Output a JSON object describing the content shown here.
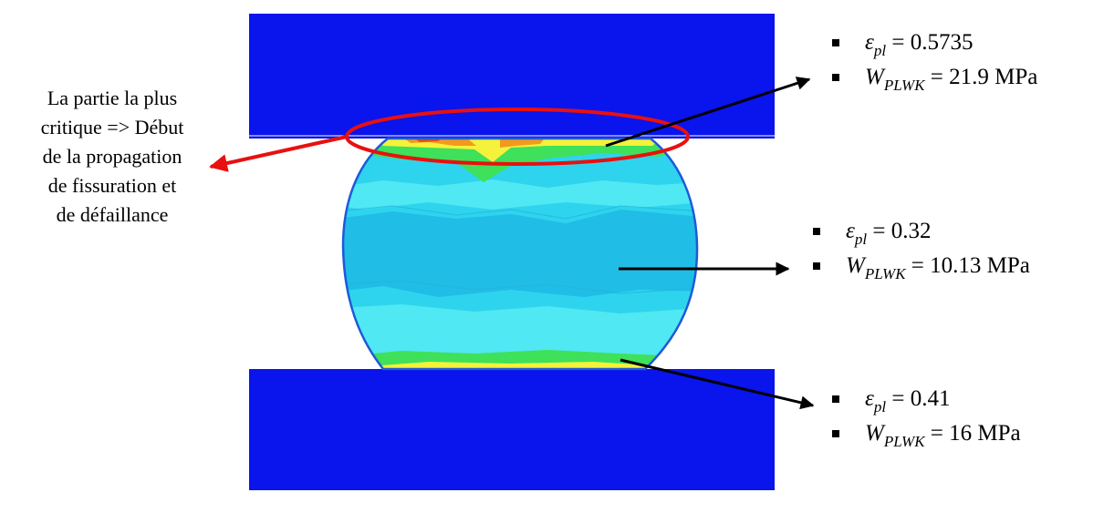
{
  "colors": {
    "platen": "#0a14ec",
    "sample_base": "#2ed4ee",
    "sample_light": "#50e8f2",
    "sample_deep": "#20bde6",
    "edge": "#1e5ad8",
    "hot_green": "#3fe05a",
    "hot_yellow": "#f4f23a",
    "hot_orange": "#f29a1e",
    "hot_red": "#f04a12",
    "annotation_red": "#e81010",
    "arrow": "#000000"
  },
  "note_critical": {
    "lines": [
      "La partie la plus",
      "critique => Début",
      "de la propagation",
      "de fissuration et",
      "de défaillance"
    ]
  },
  "zones": [
    {
      "name": "top",
      "eps_symbol": "ε",
      "eps_sub": "pl",
      "eps_value": "= 0.5735",
      "w_symbol": "W",
      "w_sub": "PLWK",
      "w_value": "= 21.9 MPa"
    },
    {
      "name": "middle",
      "eps_symbol": "ε",
      "eps_sub": "pl",
      "eps_value": "= 0.32",
      "w_symbol": "W",
      "w_sub": "PLWK",
      "w_value": "= 10.13 MPa"
    },
    {
      "name": "bottom",
      "eps_symbol": "ε",
      "eps_sub": "pl",
      "eps_value": "= 0.41",
      "w_symbol": "W",
      "w_sub": "PLWK",
      "w_value": "= 16 MPa"
    }
  ]
}
